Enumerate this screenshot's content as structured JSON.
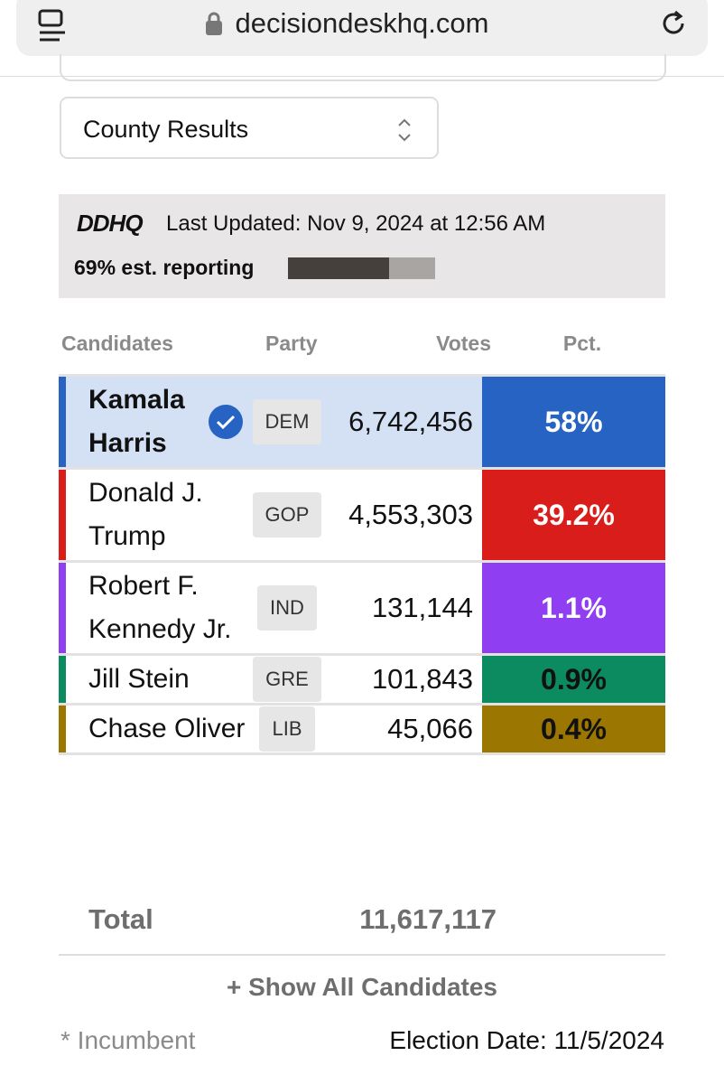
{
  "browser": {
    "url": "decisiondeskhq.com"
  },
  "selector": {
    "label": "County Results"
  },
  "status": {
    "logo": "DDHQ",
    "last_updated": "Last Updated: Nov 9, 2024 at 12:56 AM",
    "reporting_label": "69% est. reporting",
    "reporting_percent": 69
  },
  "table": {
    "columns": [
      "Candidates",
      "Party",
      "Votes",
      "Pct."
    ],
    "rows": [
      {
        "name": "Kamala Harris",
        "party": "DEM",
        "votes": "6,742,456",
        "pct": "58%",
        "color": "#2763c2",
        "pct_text_color": "#ffffff",
        "called": true
      },
      {
        "name": "Donald J. Trump",
        "party": "GOP",
        "votes": "4,553,303",
        "pct": "39.2%",
        "color": "#d91d1a",
        "pct_text_color": "#ffffff",
        "called": false
      },
      {
        "name": "Robert F. Kennedy Jr.",
        "party": "IND",
        "votes": "131,144",
        "pct": "1.1%",
        "color": "#8f3ef2",
        "pct_text_color": "#ffffff",
        "called": false
      },
      {
        "name": "Jill Stein",
        "party": "GRE",
        "votes": "101,843",
        "pct": "0.9%",
        "color": "#0c8a60",
        "pct_text_color": "#111111",
        "called": false
      },
      {
        "name": "Chase Oliver",
        "party": "LIB",
        "votes": "45,066",
        "pct": "0.4%",
        "color": "#9b7600",
        "pct_text_color": "#111111",
        "called": false
      }
    ],
    "total_label": "Total",
    "total_votes": "11,617,117"
  },
  "show_all": "+ Show All Candidates",
  "footer": {
    "note": "* Incumbent",
    "election_date": "Election Date: 11/5/2024"
  }
}
